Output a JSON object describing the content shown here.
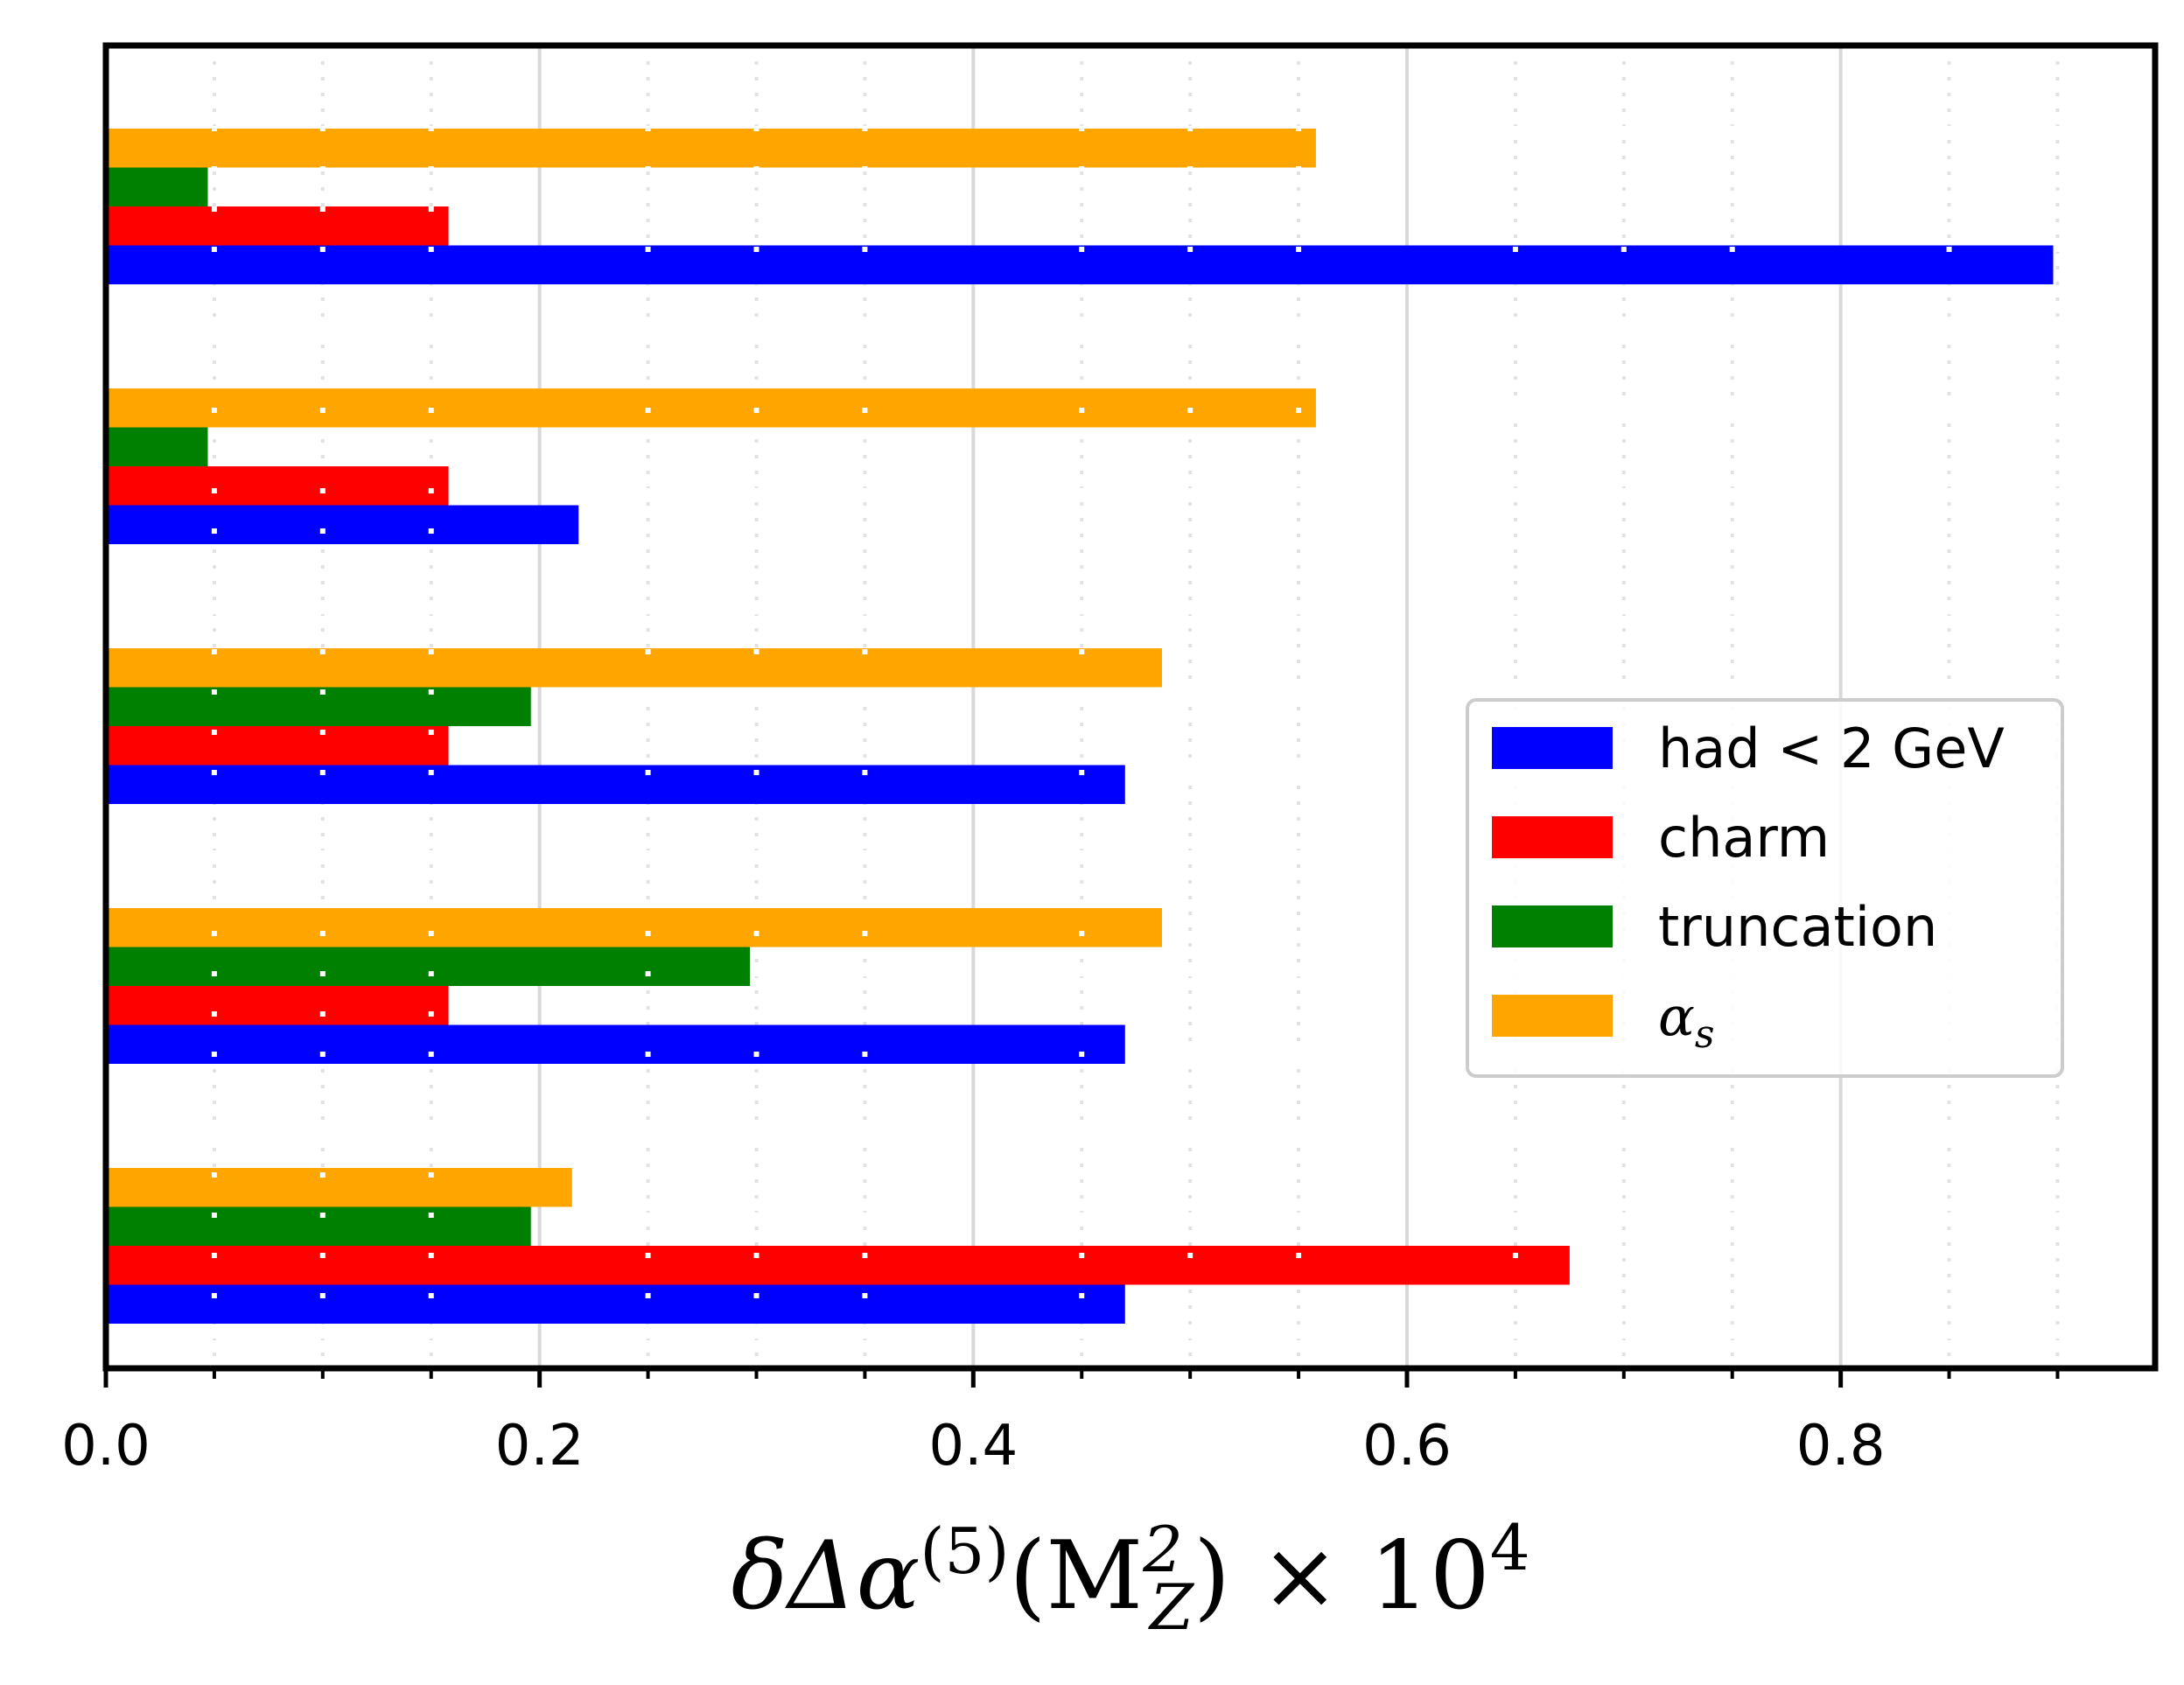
{
  "chart_data": {
    "type": "bar",
    "orientation": "horizontal",
    "groups": 5,
    "series": [
      {
        "name": "had < 2 GeV",
        "color": "#0000ff",
        "values": [
          0.47,
          0.47,
          0.47,
          0.218,
          0.898
        ]
      },
      {
        "name": "charm",
        "color": "#ff0000",
        "values": [
          0.675,
          0.158,
          0.158,
          0.158,
          0.158
        ]
      },
      {
        "name": "truncation",
        "color": "#008000",
        "values": [
          0.196,
          0.297,
          0.196,
          0.047,
          0.047
        ]
      },
      {
        "name": "α_s",
        "color": "#ffa500",
        "values": [
          0.215,
          0.487,
          0.487,
          0.558,
          0.558
        ]
      }
    ],
    "xlabel": "δΔα(5)(M2Z) × 104",
    "xlabel_parts": {
      "pre": "δΔα",
      "sup1": "(5)",
      "mid": "(M",
      "sup2": "2",
      "sub2": "Z",
      "post": ") × 10",
      "sup3": "4"
    },
    "xlim": [
      0,
      0.945
    ],
    "xticks": [
      "0.0",
      "0.2",
      "0.4",
      "0.6",
      "0.8"
    ],
    "xtick_values": [
      0,
      0.2,
      0.4,
      0.6,
      0.8
    ],
    "minor_xtick_values": [
      0.05,
      0.1,
      0.15,
      0.25,
      0.3,
      0.35,
      0.45,
      0.5,
      0.55,
      0.65,
      0.7,
      0.75,
      0.85,
      0.9
    ],
    "grid": "major solid light gray, minor dotted",
    "legend_position": "center-right",
    "legend": [
      {
        "label": "had < 2 GeV",
        "color": "#0000ff"
      },
      {
        "label": "charm",
        "color": "#ff0000"
      },
      {
        "label": "truncation",
        "color": "#008000"
      },
      {
        "label": "α",
        "sub": "s",
        "color": "#ffa500"
      }
    ]
  }
}
